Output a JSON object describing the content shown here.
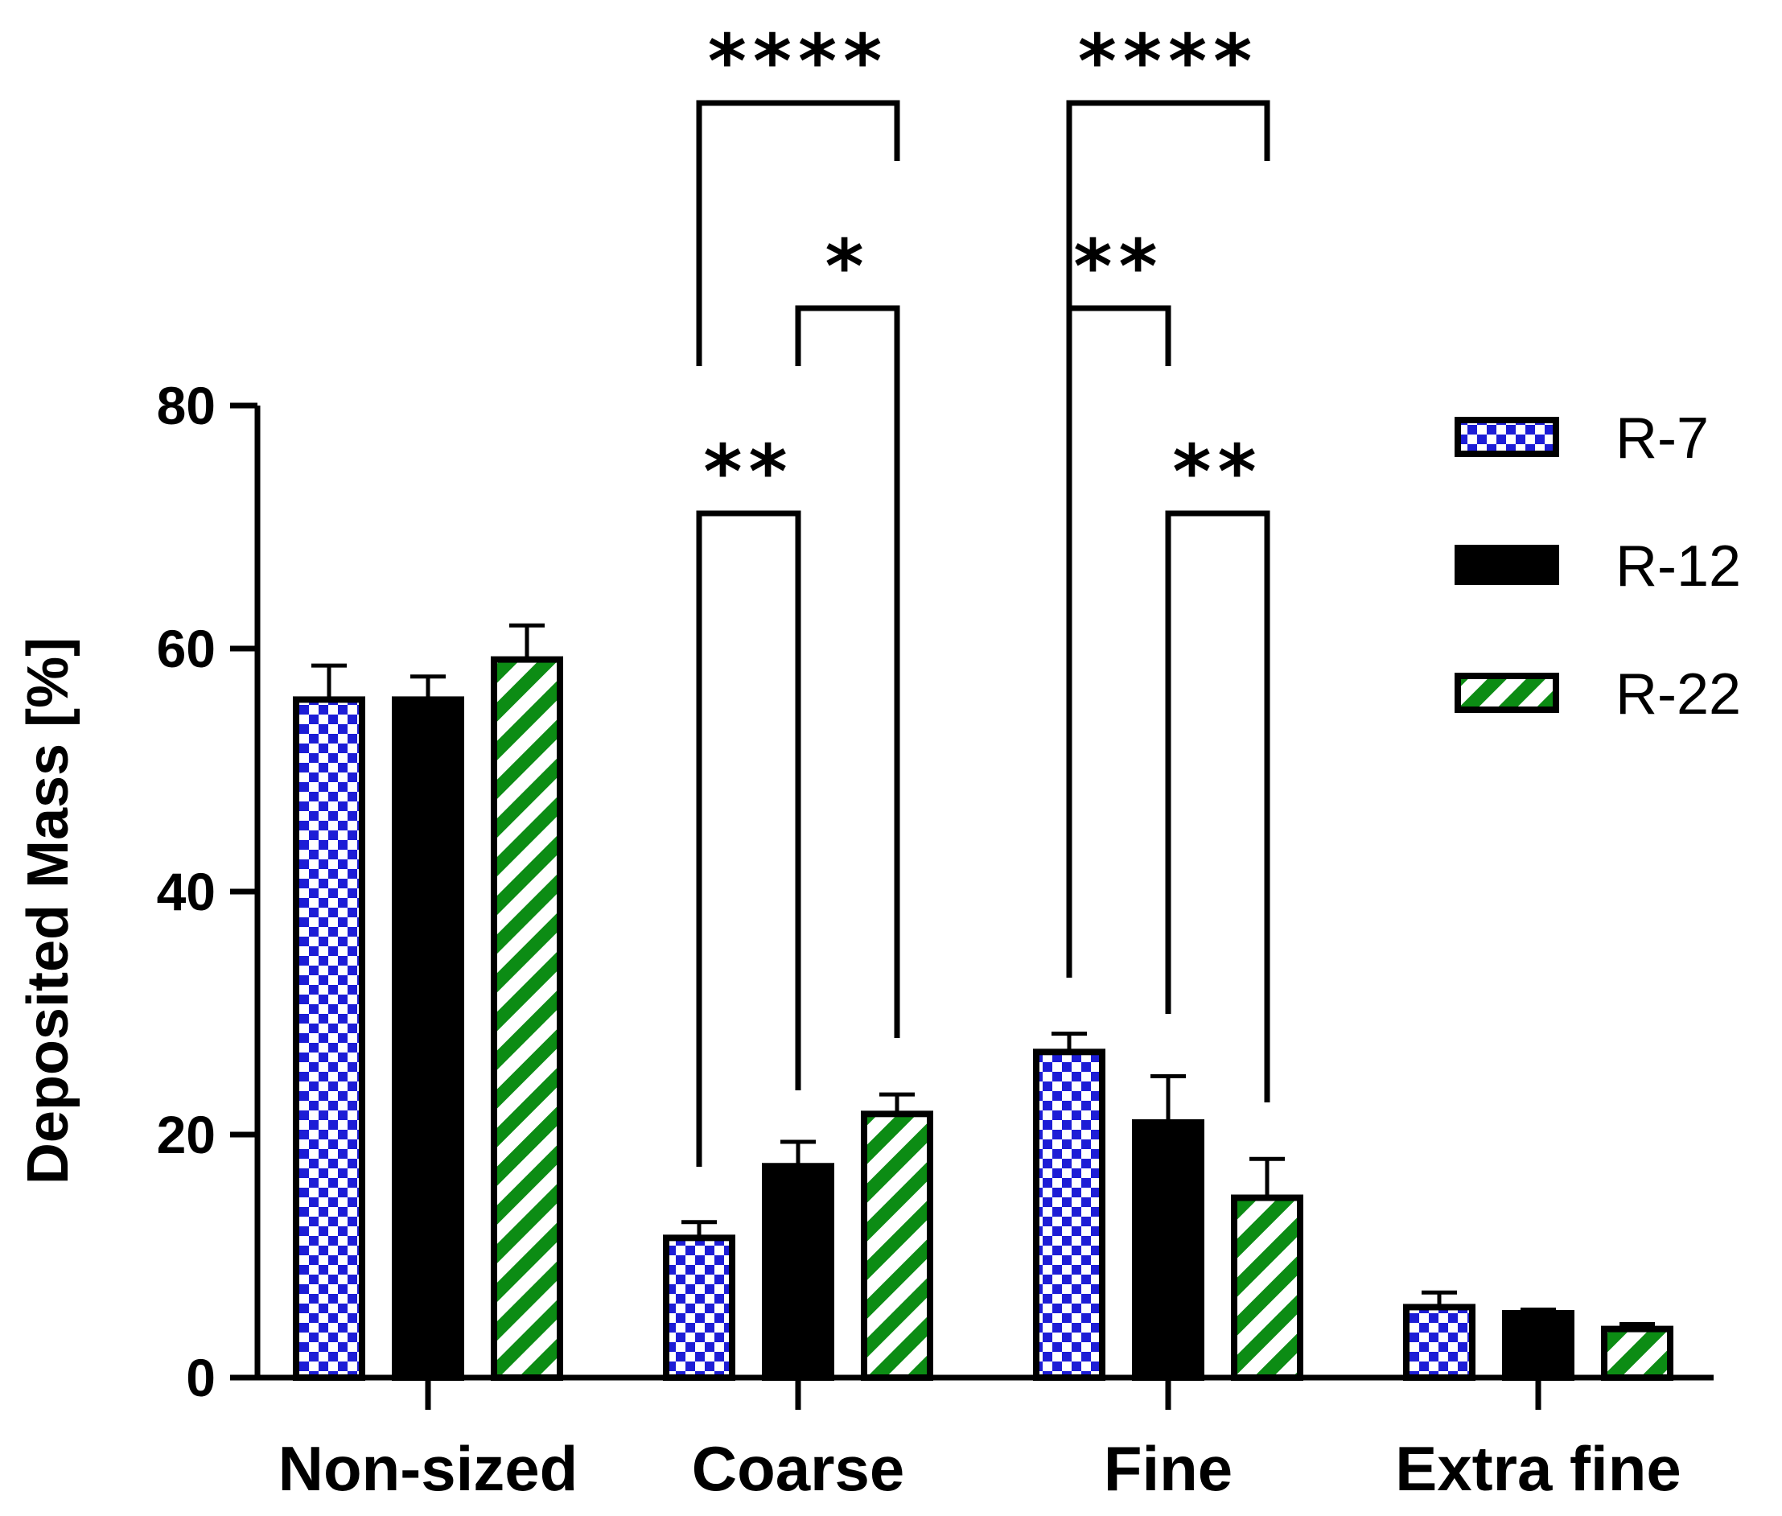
{
  "chart_data": {
    "type": "bar",
    "title": "",
    "xlabel": "",
    "ylabel": "Deposited Mass [%]",
    "ylim": [
      0,
      80
    ],
    "yticks": [
      "0",
      "20",
      "40",
      "60",
      "80"
    ],
    "categories": [
      "Non-sized",
      "Coarse",
      "Fine",
      "Extra fine"
    ],
    "series": [
      {
        "name": "R-7",
        "pattern": "checker",
        "color": "#1d1dd6",
        "values": [
          55.8,
          11.5,
          26.8,
          5.8
        ],
        "errors": [
          2.8,
          1.3,
          1.5,
          1.2
        ]
      },
      {
        "name": "R-12",
        "pattern": "solid",
        "color": "#000000",
        "values": [
          55.8,
          17.4,
          21.0,
          5.3
        ],
        "errors": [
          1.9,
          2.0,
          3.8,
          0.3
        ]
      },
      {
        "name": "R-22",
        "pattern": "stripe",
        "color": "#0c8c14",
        "values": [
          59.1,
          21.7,
          14.8,
          4.0
        ],
        "errors": [
          2.8,
          1.6,
          3.2,
          0.4
        ]
      }
    ],
    "legend_position": "right",
    "significance": [
      {
        "category": "Coarse",
        "from_series": 0,
        "to_series": 1,
        "label": "**"
      },
      {
        "category": "Coarse",
        "from_series": 1,
        "to_series": 2,
        "label": "*"
      },
      {
        "category": "Coarse",
        "from_series": 0,
        "to_series": 2,
        "label": "****"
      },
      {
        "category": "Fine",
        "from_series": 0,
        "to_series": 1,
        "label": "**"
      },
      {
        "category": "Fine",
        "from_series": 1,
        "to_series": 2,
        "label": "**"
      },
      {
        "category": "Fine",
        "from_series": 0,
        "to_series": 2,
        "label": "****"
      }
    ]
  }
}
